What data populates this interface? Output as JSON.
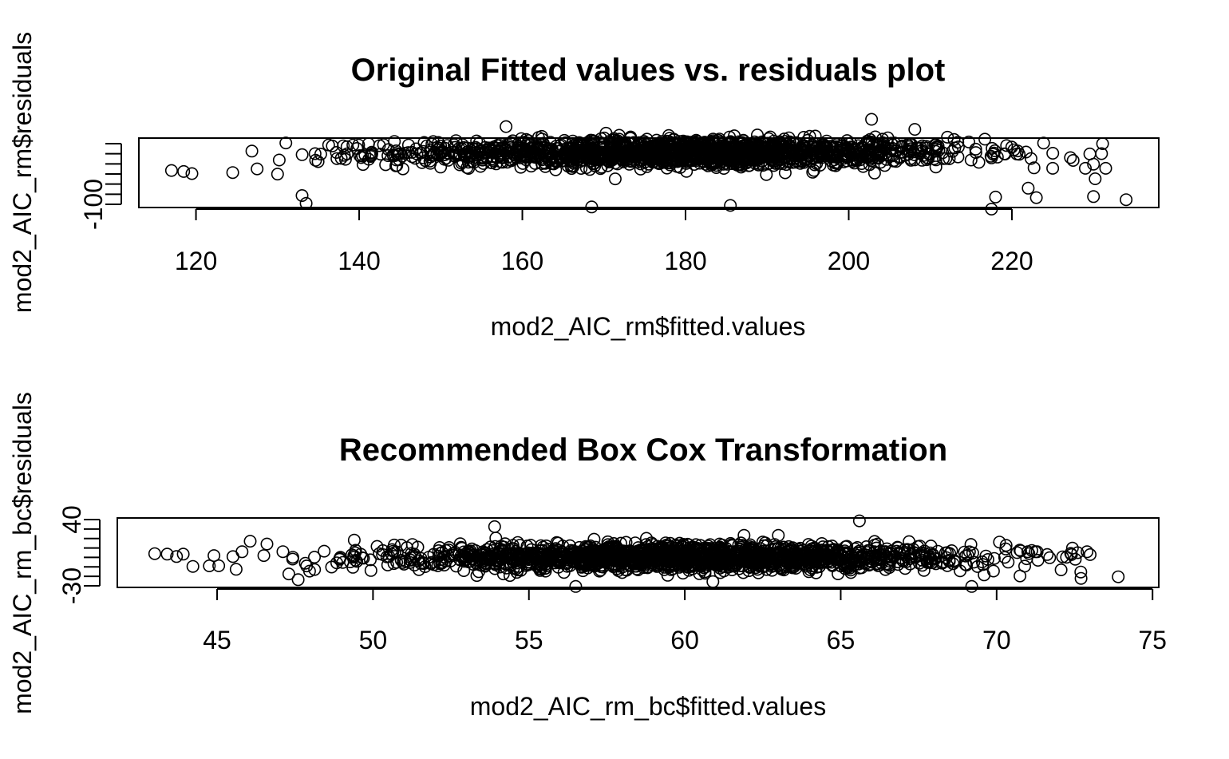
{
  "chart_data": [
    {
      "type": "scatter",
      "title": "Original Fitted values vs. residuals plot",
      "xlabel": "mod2_AIC_rm$fitted.values",
      "ylabel": "mod2_AIC_rm$residuals",
      "xlim": [
        113,
        238
      ],
      "ylim": [
        -105,
        28
      ],
      "x_ticks": [
        120,
        140,
        160,
        180,
        200,
        220
      ],
      "y_ticks": [
        -100,
        -80,
        -60,
        -40,
        -20,
        0,
        20
      ],
      "y_tick_labels": [
        "-100"
      ],
      "distribution": {
        "x_mean": 180,
        "x_sd": 17,
        "x_range": [
          117,
          234
        ],
        "y_sd": 13
      },
      "outliers": [
        {
          "x": 117,
          "y": -34
        },
        {
          "x": 118.5,
          "y": -36
        },
        {
          "x": 119.5,
          "y": -40
        },
        {
          "x": 124.5,
          "y": -38
        },
        {
          "x": 127.5,
          "y": -31
        },
        {
          "x": 130.2,
          "y": -14
        },
        {
          "x": 130,
          "y": -41
        },
        {
          "x": 133,
          "y": -82
        },
        {
          "x": 133.5,
          "y": -97
        },
        {
          "x": 141.5,
          "y": 0
        },
        {
          "x": 158,
          "y": 50
        },
        {
          "x": 168.5,
          "y": -104
        },
        {
          "x": 188.8,
          "y": 34
        },
        {
          "x": 185.5,
          "y": -101
        },
        {
          "x": 202.8,
          "y": 64
        },
        {
          "x": 215,
          "y": -14
        },
        {
          "x": 217.5,
          "y": -108
        },
        {
          "x": 218,
          "y": -85
        },
        {
          "x": 222,
          "y": -68
        },
        {
          "x": 223,
          "y": -86
        },
        {
          "x": 225,
          "y": -30
        },
        {
          "x": 229,
          "y": -30
        },
        {
          "x": 230,
          "y": -22
        },
        {
          "x": 230.2,
          "y": -50
        },
        {
          "x": 230,
          "y": -84
        },
        {
          "x": 231.5,
          "y": -30
        },
        {
          "x": 234,
          "y": -90
        }
      ]
    },
    {
      "type": "scatter",
      "title": "Recommended Box Cox Transformation",
      "xlabel": "mod2_AIC_rm_bc$fitted.values",
      "ylabel": "mod2_AIC_rm_bc$residuals",
      "xlim": [
        41.8,
        75.2
      ],
      "ylim": [
        -31,
        41
      ],
      "x_ticks": [
        45,
        50,
        55,
        60,
        65,
        70,
        75
      ],
      "y_ticks": [
        -30,
        -20,
        -10,
        0,
        10,
        20,
        30,
        40
      ],
      "y_tick_labels": [
        "-30",
        "40"
      ],
      "distribution": {
        "x_mean": 60,
        "x_sd": 4.7,
        "x_range": [
          43,
          74
        ],
        "y_sd": 6.5
      },
      "outliers": [
        {
          "x": 43,
          "y": 4
        },
        {
          "x": 43.4,
          "y": 3.5
        },
        {
          "x": 43.7,
          "y": 1
        },
        {
          "x": 44.9,
          "y": 2
        },
        {
          "x": 45.8,
          "y": 6
        },
        {
          "x": 46.5,
          "y": 2
        },
        {
          "x": 46.6,
          "y": 14
        },
        {
          "x": 47.3,
          "y": -17
        },
        {
          "x": 47.6,
          "y": -23
        },
        {
          "x": 49.4,
          "y": 18
        },
        {
          "x": 53.9,
          "y": 32
        },
        {
          "x": 56.5,
          "y": -30
        },
        {
          "x": 61.9,
          "y": 23
        },
        {
          "x": 60.9,
          "y": -25
        },
        {
          "x": 65.6,
          "y": 38
        },
        {
          "x": 69.2,
          "y": -30
        },
        {
          "x": 69.6,
          "y": -18
        },
        {
          "x": 69.9,
          "y": -14
        },
        {
          "x": 71,
          "y": 6
        },
        {
          "x": 71.3,
          "y": 6
        },
        {
          "x": 72.4,
          "y": 3
        },
        {
          "x": 72.6,
          "y": 5
        },
        {
          "x": 72.7,
          "y": -15
        },
        {
          "x": 72.9,
          "y": 6
        },
        {
          "x": 73,
          "y": 3
        },
        {
          "x": 73.9,
          "y": -20
        },
        {
          "x": 70.9,
          "y": -9
        }
      ]
    }
  ]
}
